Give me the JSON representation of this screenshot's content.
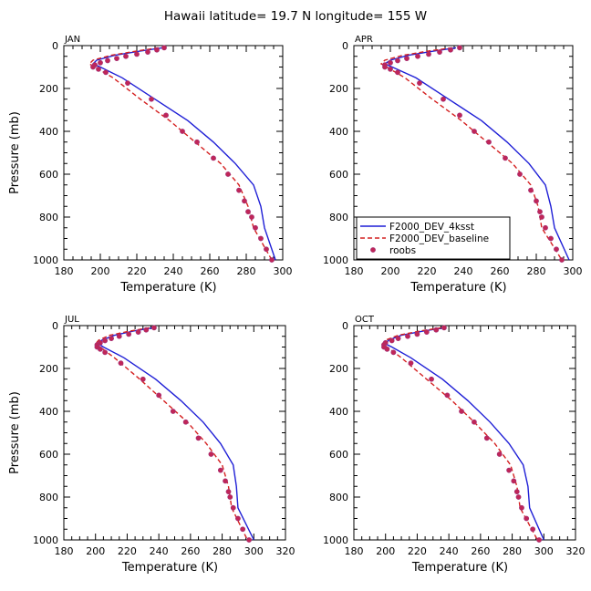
{
  "figure": {
    "title": "Hawaii  latitude= 19.7 N longitude= 155 W"
  },
  "colors": {
    "fourksst": "#1f1fd6",
    "baseline": "#d42020",
    "roobs_fill": "#c02657",
    "roobs_stroke": "#a0307a"
  },
  "chart_data": [
    {
      "type": "line",
      "panel_title": "JAN",
      "xlabel": "Temperature (K)",
      "ylabel": "Pressure (mb)",
      "xlim": [
        180,
        300
      ],
      "ylim": [
        1000,
        0
      ],
      "xticks": [
        "180",
        "200",
        "220",
        "240",
        "260",
        "280",
        "300"
      ],
      "yticks": [
        "0",
        "200",
        "400",
        "600",
        "800",
        "1000"
      ],
      "series": [
        {
          "name": "F2000_DEV_4ksst",
          "style": "solid",
          "t": [
            234,
            222,
            208,
            198,
            196,
            200,
            212,
            230,
            248,
            262,
            274,
            284,
            288,
            290,
            296
          ],
          "p": [
            10,
            25,
            45,
            68,
            85,
            100,
            150,
            250,
            350,
            450,
            550,
            650,
            750,
            850,
            1000
          ]
        },
        {
          "name": "F2000_DEV_baseline",
          "style": "dashed",
          "t": [
            232,
            220,
            206,
            196,
            194,
            197,
            207,
            222,
            238,
            252,
            266,
            276,
            281,
            284,
            294
          ],
          "p": [
            10,
            25,
            45,
            68,
            85,
            100,
            150,
            250,
            350,
            450,
            550,
            650,
            750,
            850,
            1000
          ]
        },
        {
          "name": "roobs",
          "style": "dots",
          "t": [
            235,
            231,
            226,
            220,
            214,
            209,
            204,
            200,
            197,
            196,
            199,
            203,
            215,
            228,
            236,
            245,
            253,
            262,
            270,
            276,
            279,
            281,
            283,
            285,
            288,
            291,
            294
          ],
          "p": [
            10,
            20,
            30,
            40,
            50,
            60,
            70,
            80,
            90,
            100,
            110,
            125,
            175,
            250,
            325,
            400,
            450,
            525,
            600,
            675,
            725,
            775,
            800,
            850,
            900,
            950,
            1000
          ]
        }
      ]
    },
    {
      "type": "line",
      "panel_title": "APR",
      "xlabel": "Temperature (K)",
      "ylabel": "",
      "xlim": [
        180,
        300
      ],
      "ylim": [
        1000,
        0
      ],
      "xticks": [
        "180",
        "200",
        "220",
        "240",
        "260",
        "280",
        "300"
      ],
      "yticks": [
        "0",
        "200",
        "400",
        "600",
        "800",
        "1000"
      ],
      "series": [
        {
          "name": "F2000_DEV_4ksst",
          "style": "solid",
          "t": [
            236,
            224,
            210,
            200,
            197,
            201,
            214,
            232,
            250,
            264,
            276,
            285,
            288,
            290,
            298
          ],
          "p": [
            10,
            25,
            45,
            68,
            85,
            100,
            150,
            250,
            350,
            450,
            550,
            650,
            750,
            850,
            1000
          ]
        },
        {
          "name": "F2000_DEV_baseline",
          "style": "dashed",
          "t": [
            234,
            221,
            207,
            197,
            195,
            198,
            208,
            223,
            239,
            253,
            267,
            277,
            281,
            283,
            294
          ],
          "p": [
            10,
            25,
            45,
            68,
            85,
            100,
            150,
            250,
            350,
            450,
            550,
            650,
            750,
            850,
            1000
          ]
        },
        {
          "name": "roobs",
          "style": "dots",
          "t": [
            238,
            233,
            227,
            221,
            215,
            209,
            204,
            200,
            197,
            197,
            200,
            204,
            216,
            229,
            238,
            246,
            254,
            263,
            271,
            277,
            280,
            282,
            283,
            285,
            288,
            291,
            294
          ],
          "p": [
            10,
            20,
            30,
            40,
            50,
            60,
            70,
            80,
            90,
            100,
            110,
            125,
            175,
            250,
            325,
            400,
            450,
            525,
            600,
            675,
            725,
            775,
            800,
            850,
            900,
            950,
            1000
          ]
        }
      ]
    },
    {
      "type": "line",
      "panel_title": "JUL",
      "xlabel": "Temperature (K)",
      "ylabel": "Pressure (mb)",
      "xlim": [
        180,
        320
      ],
      "ylim": [
        1000,
        0
      ],
      "xticks": [
        "180",
        "200",
        "220",
        "240",
        "260",
        "280",
        "300",
        "320"
      ],
      "yticks": [
        "0",
        "200",
        "400",
        "600",
        "800",
        "1000"
      ],
      "series": [
        {
          "name": "F2000_DEV_4ksst",
          "style": "solid",
          "t": [
            236,
            224,
            212,
            204,
            202,
            205,
            218,
            238,
            254,
            268,
            279,
            287,
            289,
            290,
            300
          ],
          "p": [
            10,
            25,
            45,
            68,
            85,
            100,
            150,
            250,
            350,
            450,
            550,
            650,
            750,
            850,
            1000
          ]
        },
        {
          "name": "F2000_DEV_baseline",
          "style": "dashed",
          "t": [
            234,
            222,
            209,
            202,
            200,
            203,
            212,
            228,
            243,
            258,
            270,
            280,
            284,
            286,
            296
          ],
          "p": [
            10,
            25,
            45,
            68,
            85,
            100,
            150,
            250,
            350,
            450,
            550,
            650,
            750,
            850,
            1000
          ]
        },
        {
          "name": "roobs",
          "style": "dots",
          "t": [
            237,
            232,
            227,
            221,
            215,
            210,
            206,
            203,
            201,
            201,
            203,
            206,
            216,
            230,
            240,
            249,
            257,
            265,
            273,
            279,
            282,
            284,
            285,
            287,
            290,
            293,
            297
          ],
          "p": [
            10,
            20,
            30,
            40,
            50,
            60,
            70,
            80,
            90,
            100,
            110,
            125,
            175,
            250,
            325,
            400,
            450,
            525,
            600,
            675,
            725,
            775,
            800,
            850,
            900,
            950,
            1000
          ]
        }
      ]
    },
    {
      "type": "line",
      "panel_title": "OCT",
      "xlabel": "Temperature (K)",
      "ylabel": "",
      "xlim": [
        180,
        320
      ],
      "ylim": [
        1000,
        0
      ],
      "xticks": [
        "180",
        "200",
        "220",
        "240",
        "260",
        "280",
        "300",
        "320"
      ],
      "yticks": [
        "0",
        "200",
        "400",
        "600",
        "800",
        "1000"
      ],
      "series": [
        {
          "name": "F2000_DEV_4ksst",
          "style": "solid",
          "t": [
            237,
            224,
            210,
            202,
            200,
            204,
            216,
            236,
            252,
            266,
            278,
            287,
            290,
            291,
            300
          ],
          "p": [
            10,
            25,
            45,
            68,
            85,
            100,
            150,
            250,
            350,
            450,
            550,
            650,
            750,
            850,
            1000
          ]
        },
        {
          "name": "F2000_DEV_baseline",
          "style": "dashed",
          "t": [
            235,
            222,
            208,
            200,
            198,
            201,
            210,
            226,
            242,
            256,
            269,
            279,
            283,
            285,
            296
          ],
          "p": [
            10,
            25,
            45,
            68,
            85,
            100,
            150,
            250,
            350,
            450,
            550,
            650,
            750,
            850,
            1000
          ]
        },
        {
          "name": "roobs",
          "style": "dots",
          "t": [
            237,
            232,
            226,
            220,
            214,
            208,
            204,
            200,
            199,
            199,
            201,
            205,
            216,
            229,
            239,
            248,
            256,
            264,
            272,
            278,
            281,
            283,
            284,
            286,
            289,
            293,
            297
          ],
          "p": [
            10,
            20,
            30,
            40,
            50,
            60,
            70,
            80,
            90,
            100,
            110,
            125,
            175,
            250,
            325,
            400,
            450,
            525,
            600,
            675,
            725,
            775,
            800,
            850,
            900,
            950,
            1000
          ]
        }
      ]
    }
  ],
  "legend": {
    "panel": 1,
    "placement": "bottom-left",
    "entries": [
      {
        "label": "F2000_DEV_4ksst",
        "style": "solid"
      },
      {
        "label": "F2000_DEV_baseline",
        "style": "dashed"
      },
      {
        "label": "roobs",
        "style": "dots"
      }
    ]
  }
}
